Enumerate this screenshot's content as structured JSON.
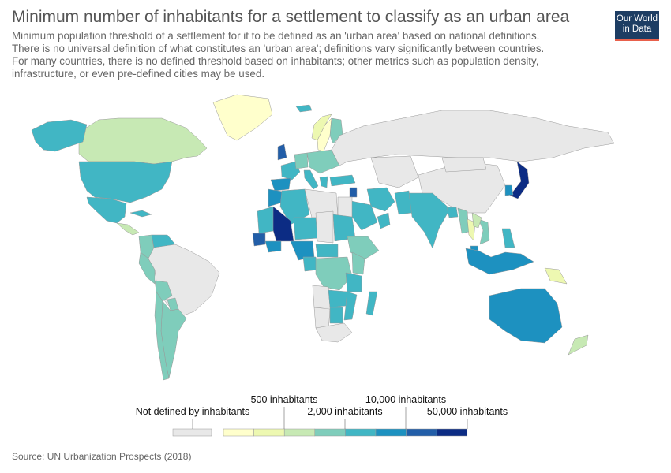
{
  "title": "Minimum number of inhabitants for a settlement to classify as an urban area",
  "subtitle_lines": [
    "Minimum population threshold of a settlement for it to be defined as an 'urban area' based on national definitions.",
    "There is no universal definition of what constitutes an 'urban area'; definitions vary significantly between countries.",
    "For many countries, there is no defined threshold based on inhabitants; other metrics such as population density,",
    "infrastructure, or even pre-defined cities may be used."
  ],
  "logo": {
    "line1": "Our World",
    "line2": "in Data"
  },
  "source": "Source: UN Urbanization Prospects (2018)",
  "colors": {
    "no_data": "#e8e8e8",
    "scale": [
      "#ffffcc",
      "#edf8b1",
      "#c7e9b4",
      "#7fcdbb",
      "#41b6c4",
      "#1d91c0",
      "#225ea8",
      "#0c2c84"
    ]
  },
  "legend": {
    "no_data_label": "Not defined by inhabitants",
    "labels": [
      "500 inhabitants",
      "2,000 inhabitants",
      "10,000 inhabitants",
      "50,000 inhabitants"
    ]
  },
  "map_data": [
    {
      "region": "Canada",
      "bin": 2
    },
    {
      "region": "Alaska",
      "bin": 4
    },
    {
      "region": "Greenland",
      "bin": 0
    },
    {
      "region": "United States",
      "bin": 4
    },
    {
      "region": "Mexico",
      "bin": 4
    },
    {
      "region": "Central America",
      "bin": 2
    },
    {
      "region": "Cuba",
      "bin": 4
    },
    {
      "region": "Venezuela",
      "bin": 4
    },
    {
      "region": "Colombia",
      "bin": 3
    },
    {
      "region": "Peru",
      "bin": 3
    },
    {
      "region": "Brazil",
      "bin": -1
    },
    {
      "region": "Argentina",
      "bin": 3
    },
    {
      "region": "Chile",
      "bin": 3
    },
    {
      "region": "Bolivia",
      "bin": 3
    },
    {
      "region": "Paraguay",
      "bin": 3
    },
    {
      "region": "Iceland",
      "bin": 4
    },
    {
      "region": "Norway",
      "bin": 1
    },
    {
      "region": "Sweden",
      "bin": 0
    },
    {
      "region": "Finland",
      "bin": 3
    },
    {
      "region": "United Kingdom",
      "bin": 6
    },
    {
      "region": "France",
      "bin": 4
    },
    {
      "region": "Spain",
      "bin": 5
    },
    {
      "region": "Germany",
      "bin": 3
    },
    {
      "region": "Italy",
      "bin": 4
    },
    {
      "region": "Eastern Europe",
      "bin": 3
    },
    {
      "region": "Greece",
      "bin": 4
    },
    {
      "region": "Turkey",
      "bin": 4
    },
    {
      "region": "Russia",
      "bin": -1
    },
    {
      "region": "Syria",
      "bin": 6
    },
    {
      "region": "Iran",
      "bin": 4
    },
    {
      "region": "Saudi Arabia",
      "bin": 4
    },
    {
      "region": "Oman",
      "bin": 4
    },
    {
      "region": "Central Asia",
      "bin": -1
    },
    {
      "region": "China",
      "bin": -1
    },
    {
      "region": "Mongolia",
      "bin": -1
    },
    {
      "region": "Pakistan",
      "bin": 4
    },
    {
      "region": "India",
      "bin": 4
    },
    {
      "region": "Bangladesh",
      "bin": 4
    },
    {
      "region": "Myanmar",
      "bin": 3
    },
    {
      "region": "Thailand",
      "bin": 1
    },
    {
      "region": "Vietnam",
      "bin": 3
    },
    {
      "region": "Laos",
      "bin": 2
    },
    {
      "region": "Japan",
      "bin": 7
    },
    {
      "region": "South Korea",
      "bin": 5
    },
    {
      "region": "Philippines",
      "bin": 4
    },
    {
      "region": "Malaysia",
      "bin": 5
    },
    {
      "region": "Indonesia",
      "bin": 5
    },
    {
      "region": "Papua New Guinea",
      "bin": 1
    },
    {
      "region": "Australia",
      "bin": 5
    },
    {
      "region": "New Zealand",
      "bin": 2
    },
    {
      "region": "Morocco",
      "bin": 5
    },
    {
      "region": "Algeria",
      "bin": 4
    },
    {
      "region": "Libya",
      "bin": -1
    },
    {
      "region": "Egypt",
      "bin": -1
    },
    {
      "region": "Mauritania",
      "bin": 4
    },
    {
      "region": "Mali",
      "bin": 7
    },
    {
      "region": "Niger",
      "bin": 4
    },
    {
      "region": "Chad",
      "bin": -1
    },
    {
      "region": "Sudan",
      "bin": 4
    },
    {
      "region": "Ethiopia",
      "bin": 3
    },
    {
      "region": "Senegal",
      "bin": 6
    },
    {
      "region": "Burkina Faso",
      "bin": 5
    },
    {
      "region": "Nigeria",
      "bin": 5
    },
    {
      "region": "Central African Republic",
      "bin": 4
    },
    {
      "region": "Cameroon",
      "bin": 4
    },
    {
      "region": "Kenya",
      "bin": 3
    },
    {
      "region": "DR Congo",
      "bin": 3
    },
    {
      "region": "Tanzania",
      "bin": 4
    },
    {
      "region": "Angola",
      "bin": -1
    },
    {
      "region": "Zambia",
      "bin": 4
    },
    {
      "region": "Namibia",
      "bin": -1
    },
    {
      "region": "Botswana",
      "bin": 4
    },
    {
      "region": "Mozambique",
      "bin": 4
    },
    {
      "region": "South Africa",
      "bin": -1
    },
    {
      "region": "Madagascar",
      "bin": 4
    }
  ]
}
